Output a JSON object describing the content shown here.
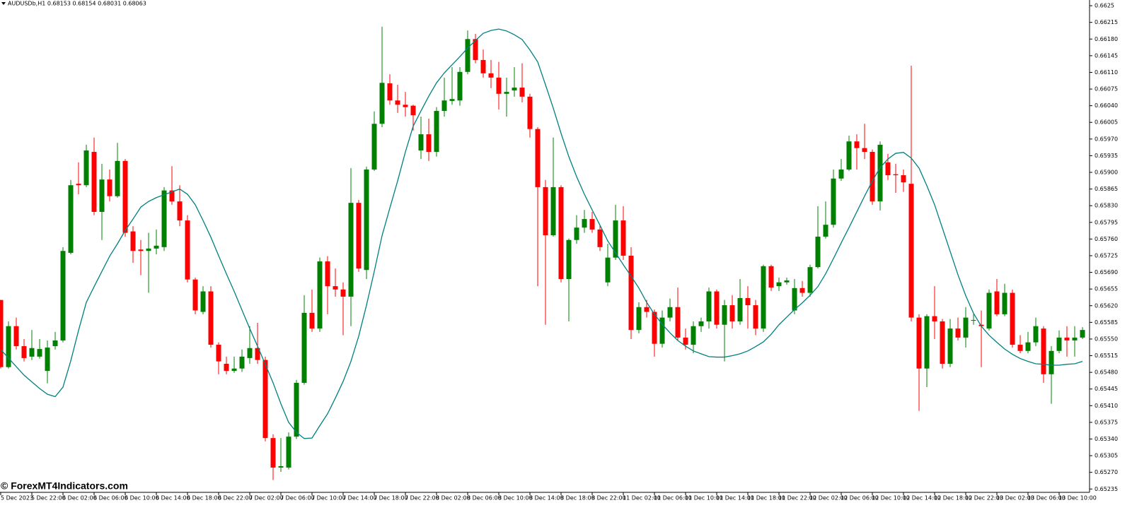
{
  "chart_data": {
    "type": "candlestick",
    "title": "AUDUSDb,H1  0.68153 0.68154 0.68031 0.68063",
    "watermark": "© ForexMT4Indicators.com",
    "up_color": "#008000",
    "down_color": "#ff0000",
    "categories": [
      "5 Dec 2023",
      null,
      null,
      null,
      "5 Dec 22:00",
      null,
      null,
      null,
      "6 Dec 02:00",
      null,
      null,
      null,
      "6 Dec 06:00",
      null,
      null,
      null,
      "6 Dec 10:00",
      null,
      null,
      null,
      "6 Dec 14:00",
      null,
      null,
      null,
      "6 Dec 18:00",
      null,
      null,
      null,
      "6 Dec 22:00",
      null,
      null,
      null,
      "7 Dec 02:00",
      null,
      null,
      null,
      "7 Dec 06:00",
      null,
      null,
      null,
      "7 Dec 10:00",
      null,
      null,
      null,
      "7 Dec 14:00",
      null,
      null,
      null,
      "7 Dec 18:00",
      null,
      null,
      null,
      "7 Dec 22:00",
      null,
      null,
      null,
      "8 Dec 02:00",
      null,
      null,
      null,
      "8 Dec 06:00",
      null,
      null,
      null,
      "8 Dec 10:00",
      null,
      null,
      null,
      "8 Dec 14:00",
      null,
      null,
      null,
      "8 Dec 18:00",
      null,
      null,
      null,
      "8 Dec 22:00",
      null,
      null,
      null,
      "11 Dec 02:00",
      null,
      null,
      null,
      "11 Dec 06:00",
      null,
      null,
      null,
      "11 Dec 10:00",
      null,
      null,
      null,
      "11 Dec 14:00",
      null,
      null,
      null,
      "11 Dec 18:00",
      null,
      null,
      null,
      "11 Dec 22:00",
      null,
      null,
      null,
      "12 Dec 02:00",
      null,
      null,
      null,
      "12 Dec 06:00",
      null,
      null,
      null,
      "12 Dec 10:00",
      null,
      null,
      null,
      "12 Dec 14:00",
      null,
      null,
      null,
      "12 Dec 18:00",
      null,
      null,
      null,
      "12 Dec 22:00",
      null,
      null,
      null,
      "13 Dec 02:00",
      null,
      null,
      null,
      "13 Dec 06:00",
      null,
      null,
      null,
      "13 Dec 10:00",
      null,
      null,
      null
    ],
    "open": [
      0.65632,
      0.65491,
      0.65577,
      0.65535,
      0.65513,
      0.65513,
      0.65483,
      0.65535,
      0.65547,
      0.65731,
      0.65876,
      0.65873,
      0.65943,
      0.65817,
      0.65885,
      0.6585,
      0.65924,
      0.65776,
      0.65738,
      0.65735,
      0.6574,
      0.65743,
      0.65862,
      0.65839,
      0.65799,
      0.65675,
      0.65607,
      0.6565,
      0.65538,
      0.65498,
      0.65483,
      0.65488,
      0.6551,
      0.65531,
      0.65506,
      0.65342,
      0.6528,
      0.6528,
      0.65345,
      0.65458,
      0.65605,
      0.65572,
      0.65713,
      0.65661,
      0.65654,
      0.65639,
      0.65836,
      0.65695,
      0.65906,
      0.66002,
      0.66087,
      0.66051,
      0.66042,
      0.6604,
      0.65946,
      0.6598,
      0.65943,
      0.66029,
      0.6605,
      0.66051,
      0.66111,
      0.6618,
      0.66136,
      0.66108,
      0.66099,
      0.66065,
      0.66072,
      0.66078,
      0.66059,
      0.65991,
      0.65869,
      0.65768,
      0.65869,
      0.65676,
      0.65758,
      0.65784,
      0.65802,
      0.6578,
      0.65669,
      0.65721,
      0.65799,
      0.65725,
      0.65569,
      0.65617,
      0.65607,
      0.6554,
      0.65595,
      0.65617,
      0.65553,
      0.65538,
      0.65577,
      0.65587,
      0.6565,
      0.6558,
      0.65621,
      0.65587,
      0.65636,
      0.65621,
      0.65572,
      0.65703,
      0.65661,
      0.65669,
      0.6561,
      0.65657,
      0.65647,
      0.65701,
      0.65765,
      0.6579,
      0.65887,
      0.65906,
      0.65965,
      0.65951,
      0.65943,
      0.65839,
      0.65921,
      0.65896,
      0.65894,
      0.65876,
      0.65595,
      0.65488,
      0.65598,
      0.65587,
      0.65498,
      0.65572,
      0.65553,
      0.6559,
      0.6558,
      0.65572,
      0.6565,
      0.65602,
      0.65647,
      0.65538,
      0.65525,
      0.65543,
      0.65572,
      0.65476,
      0.65525,
      0.65553,
      0.65547,
      0.65553
    ],
    "high": [
      0.65632,
      0.65587,
      0.65595,
      0.6555,
      0.65569,
      0.6555,
      0.65547,
      0.65565,
      0.65743,
      0.65884,
      0.65921,
      0.65958,
      0.65973,
      0.65918,
      0.65906,
      0.65962,
      0.65928,
      0.65787,
      0.65758,
      0.65773,
      0.6578,
      0.65869,
      0.65913,
      0.65873,
      0.6581,
      0.65679,
      0.65661,
      0.65661,
      0.65543,
      0.65513,
      0.65513,
      0.65528,
      0.65577,
      0.65584,
      0.65513,
      0.6535,
      0.65342,
      0.65354,
      0.65464,
      0.65642,
      0.65654,
      0.65721,
      0.65724,
      0.65698,
      0.65669,
      0.65909,
      0.65842,
      0.65912,
      0.66028,
      0.66206,
      0.66106,
      0.66084,
      0.66069,
      0.66042,
      0.66017,
      0.66013,
      0.66037,
      0.66099,
      0.66121,
      0.66121,
      0.66198,
      0.66191,
      0.66158,
      0.66136,
      0.66132,
      0.66099,
      0.66121,
      0.66129,
      0.66065,
      0.65995,
      0.65884,
      0.65973,
      0.65873,
      0.65761,
      0.6581,
      0.65821,
      0.65817,
      0.6579,
      0.6575,
      0.65832,
      0.65829,
      0.65743,
      0.65627,
      0.65632,
      0.65612,
      0.6561,
      0.65635,
      0.65658,
      0.65572,
      0.65587,
      0.65595,
      0.65658,
      0.65654,
      0.65632,
      0.65642,
      0.65676,
      0.65661,
      0.65632,
      0.65706,
      0.65706,
      0.65679,
      0.65679,
      0.65676,
      0.65672,
      0.65706,
      0.65829,
      0.65839,
      0.65906,
      0.65928,
      0.65977,
      0.6598,
      0.66002,
      0.65948,
      0.65965,
      0.65939,
      0.65918,
      0.65906,
      0.66124,
      0.65602,
      0.65602,
      0.65661,
      0.65592,
      0.65592,
      0.65595,
      0.65617,
      0.65602,
      0.6561,
      0.65654,
      0.65676,
      0.65666,
      0.65654,
      0.65558,
      0.65565,
      0.65595,
      0.65577,
      0.65535,
      0.65568,
      0.65577,
      0.65577,
      0.65575
    ],
    "low": [
      0.65488,
      0.65488,
      0.65528,
      0.65503,
      0.65506,
      0.65509,
      0.65457,
      0.65528,
      0.65543,
      0.65728,
      0.65854,
      0.65869,
      0.6581,
      0.65758,
      0.65839,
      0.65847,
      0.65765,
      0.6571,
      0.65684,
      0.65647,
      0.65728,
      0.65735,
      0.65832,
      0.65787,
      0.65669,
      0.65602,
      0.65602,
      0.65532,
      0.65476,
      0.65476,
      0.65479,
      0.65481,
      0.65498,
      0.65498,
      0.65335,
      0.65254,
      0.65271,
      0.65276,
      0.6534,
      0.65454,
      0.65565,
      0.65565,
      0.65602,
      0.65639,
      0.65558,
      0.65577,
      0.65691,
      0.65676,
      0.65903,
      0.65995,
      0.66042,
      0.66025,
      0.66017,
      0.65988,
      0.65928,
      0.65924,
      0.65933,
      0.66017,
      0.66042,
      0.6604,
      0.66106,
      0.66129,
      0.66099,
      0.66077,
      0.66032,
      0.66017,
      0.66059,
      0.66047,
      0.65973,
      0.65661,
      0.6558,
      0.65765,
      0.65669,
      0.65587,
      0.6575,
      0.65773,
      0.65773,
      0.65735,
      0.65661,
      0.65716,
      0.65716,
      0.6555,
      0.65562,
      0.65595,
      0.65513,
      0.65532,
      0.65587,
      0.65547,
      0.65528,
      0.6552,
      0.65565,
      0.65572,
      0.65572,
      0.65503,
      0.65572,
      0.6558,
      0.65572,
      0.65558,
      0.65565,
      0.65651,
      0.65651,
      0.65664,
      0.65602,
      0.65639,
      0.65639,
      0.65698,
      0.65761,
      0.65784,
      0.65882,
      0.65903,
      0.65906,
      0.65928,
      0.65832,
      0.6582,
      0.65884,
      0.65857,
      0.65859,
      0.65587,
      0.65399,
      0.65449,
      0.6555,
      0.65488,
      0.65491,
      0.65547,
      0.65532,
      0.6558,
      0.65491,
      0.65568,
      0.65598,
      0.65598,
      0.65532,
      0.6552,
      0.6552,
      0.65535,
      0.65458,
      0.65414,
      0.6552,
      0.65513,
      0.65513,
      0.6555
    ],
    "close": [
      0.65491,
      0.65577,
      0.65535,
      0.6551,
      0.65531,
      0.65529,
      0.65532,
      0.65547,
      0.65735,
      0.65873,
      0.65873,
      0.65946,
      0.65817,
      0.65885,
      0.6585,
      0.65924,
      0.65773,
      0.65735,
      0.65735,
      0.6574,
      0.65746,
      0.65862,
      0.65839,
      0.65799,
      0.65675,
      0.6561,
      0.6565,
      0.65538,
      0.65503,
      0.65483,
      0.65488,
      0.65513,
      0.65531,
      0.65506,
      0.65342,
      0.6528,
      0.65283,
      0.65345,
      0.65458,
      0.65605,
      0.65572,
      0.65713,
      0.65661,
      0.65654,
      0.65639,
      0.65836,
      0.65698,
      0.65906,
      0.66002,
      0.66088,
      0.66051,
      0.66042,
      0.66037,
      0.6602,
      0.6598,
      0.65943,
      0.66029,
      0.66051,
      0.66054,
      0.66111,
      0.6618,
      0.66136,
      0.66108,
      0.66099,
      0.66065,
      0.66069,
      0.66078,
      0.66059,
      0.65991,
      0.65869,
      0.65768,
      0.65869,
      0.65676,
      0.65758,
      0.65784,
      0.65802,
      0.6578,
      0.65743,
      0.65721,
      0.65799,
      0.65725,
      0.65569,
      0.65617,
      0.65607,
      0.6554,
      0.65595,
      0.65617,
      0.65553,
      0.65538,
      0.65577,
      0.65587,
      0.6565,
      0.6558,
      0.65621,
      0.65587,
      0.65636,
      0.65621,
      0.65572,
      0.65703,
      0.65658,
      0.65669,
      0.65673,
      0.65657,
      0.65647,
      0.65701,
      0.65765,
      0.6579,
      0.65887,
      0.65906,
      0.65965,
      0.65951,
      0.65943,
      0.65839,
      0.65958,
      0.65894,
      0.65894,
      0.65879,
      0.65595,
      0.65488,
      0.65598,
      0.65587,
      0.65498,
      0.65572,
      0.65553,
      0.65595,
      0.6559,
      0.65577,
      0.65647,
      0.65602,
      0.65647,
      0.65538,
      0.65525,
      0.65543,
      0.65577,
      0.65476,
      0.65525,
      0.65553,
      0.65547,
      0.65553,
      0.65569
    ],
    "series": [
      {
        "color": "#008080",
        "values": [
          0.65528,
          0.6551,
          0.65492,
          0.65474,
          0.6546,
          0.65446,
          0.65434,
          0.65429,
          0.65449,
          0.65504,
          0.65568,
          0.65627,
          0.6566,
          0.65692,
          0.65724,
          0.6575,
          0.65778,
          0.65802,
          0.65827,
          0.65839,
          0.65847,
          0.65853,
          0.65859,
          0.65865,
          0.65854,
          0.65832,
          0.65799,
          0.65764,
          0.65725,
          0.65687,
          0.6565,
          0.65611,
          0.65572,
          0.65535,
          0.65497,
          0.65458,
          0.65414,
          0.65375,
          0.65354,
          0.65341,
          0.65342,
          0.65368,
          0.65393,
          0.65426,
          0.65461,
          0.65503,
          0.65556,
          0.65621,
          0.65692,
          0.65767,
          0.65825,
          0.65882,
          0.65943,
          0.65997,
          0.66029,
          0.6606,
          0.66088,
          0.66109,
          0.66126,
          0.66143,
          0.66161,
          0.66177,
          0.66192,
          0.66198,
          0.66201,
          0.66197,
          0.66189,
          0.66179,
          0.66157,
          0.66132,
          0.66084,
          0.66035,
          0.65982,
          0.65933,
          0.65891,
          0.65854,
          0.65821,
          0.65789,
          0.65756,
          0.65731,
          0.65706,
          0.65682,
          0.65657,
          0.65627,
          0.65602,
          0.65581,
          0.65563,
          0.65547,
          0.65535,
          0.65525,
          0.65519,
          0.65513,
          0.65512,
          0.65512,
          0.65515,
          0.65519,
          0.65525,
          0.65534,
          0.65544,
          0.6556,
          0.6558,
          0.65596,
          0.65612,
          0.65626,
          0.65642,
          0.6566,
          0.65687,
          0.65719,
          0.65752,
          0.65784,
          0.65817,
          0.6585,
          0.65882,
          0.6591,
          0.65928,
          0.6594,
          0.65942,
          0.6593,
          0.65909,
          0.65872,
          0.65832,
          0.65783,
          0.65734,
          0.65685,
          0.65641,
          0.65604,
          0.65577,
          0.65558,
          0.65543,
          0.65529,
          0.65518,
          0.65509,
          0.65503,
          0.65498,
          0.65497,
          0.65495,
          0.65495,
          0.65497,
          0.65498,
          0.65503
        ]
      }
    ],
    "ylim": [
      0.65228,
      0.66262
    ],
    "yticks": [
      0.6625,
      0.66215,
      {
        "value": 0.6618,
        "label": "0.66180"
      },
      0.66145,
      {
        "value": 0.6611,
        "label": "0.66110"
      },
      0.66075,
      {
        "value": 0.6604,
        "label": "0.66040"
      },
      0.66005,
      {
        "value": 0.6597,
        "label": "0.65970"
      },
      0.65935,
      {
        "value": 0.659,
        "label": "0.65900"
      },
      0.65865,
      {
        "value": 0.6583,
        "label": "0.65830"
      },
      0.65795,
      {
        "value": 0.6576,
        "label": "0.65760"
      },
      0.65725,
      {
        "value": 0.6569,
        "label": "0.65690"
      },
      0.65655,
      {
        "value": 0.6562,
        "label": "0.65620"
      },
      0.65585,
      {
        "value": 0.6555,
        "label": "0.65550"
      },
      0.65515,
      {
        "value": 0.6548,
        "label": "0.65480"
      },
      0.65445,
      {
        "value": 0.6541,
        "label": "0.65410"
      },
      0.65375,
      {
        "value": 0.6534,
        "label": "0.65340"
      },
      0.65305,
      {
        "value": 0.6527,
        "label": "0.65270"
      },
      0.65235
    ],
    "grid": false
  }
}
